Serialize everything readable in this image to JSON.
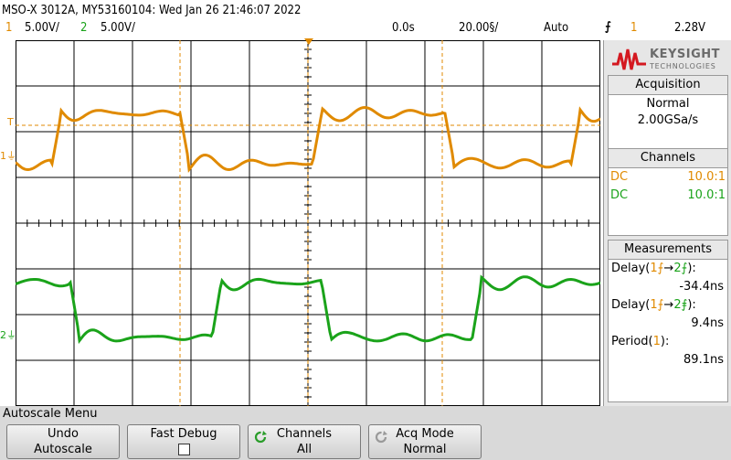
{
  "header": {
    "instrument": "MSO-X 3012A, MY53160104: Wed Jan 26 21:46:07 2022",
    "ch1": {
      "num": "1",
      "scale": "5.00V/"
    },
    "ch2": {
      "num": "2",
      "scale": "5.00V/"
    },
    "time_pos": "0.0s",
    "time_scale": "20.00§/",
    "trigger_mode": "Auto",
    "trigger_icon": "⨍",
    "trigger_source": "1",
    "trigger_level": "2.28V"
  },
  "markers": {
    "ch1": "1",
    "ch2": "2",
    "trig": "T"
  },
  "logo": {
    "brand": "KEYSIGHT",
    "sub": "TECHNOLOGIES"
  },
  "acquisition": {
    "title": "Acquisition",
    "mode": "Normal",
    "rate": "2.00GSa/s"
  },
  "channels": {
    "title": "Channels",
    "rows": [
      {
        "coupling": "DC",
        "probe": "10.0:1",
        "color": "#e08a00"
      },
      {
        "coupling": "DC",
        "probe": "10.0:1",
        "color": "#1aa31a"
      }
    ]
  },
  "measurements": {
    "title": "Measurements",
    "items": [
      {
        "prefix": "Delay(",
        "a": "1⨍",
        "arrow": "→",
        "b": "2⨍",
        "suffix": "):",
        "value": "-34.4ns"
      },
      {
        "prefix": "Delay(",
        "a": "1⨍",
        "arrow": "→",
        "b": "2⨎",
        "suffix": "):",
        "value": "9.4ns"
      },
      {
        "prefix": "Period(",
        "a": "1",
        "arrow": "",
        "b": "",
        "suffix": "):",
        "value": "89.1ns"
      }
    ]
  },
  "menu": {
    "title": "Autoscale Menu",
    "keys": [
      {
        "line1": "Undo",
        "line2": "Autoscale"
      },
      {
        "line1": "Fast Debug",
        "line2": ""
      },
      {
        "line1": "Channels",
        "line2": "All"
      },
      {
        "line1": "Acq Mode",
        "line2": "Normal"
      }
    ]
  },
  "colors": {
    "ch1": "#e08a00",
    "ch2": "#1aa31a",
    "grid": "#000000"
  }
}
